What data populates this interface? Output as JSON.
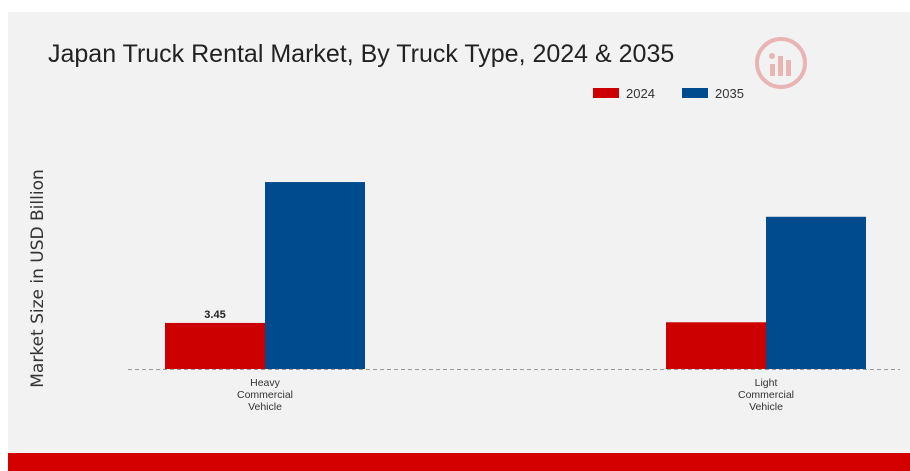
{
  "colors": {
    "series_2024": "#cc0000",
    "series_2035": "#004b8d",
    "baseline": "#999999",
    "footer": "#d40000"
  },
  "logo": {
    "icon": "market-research-logo-icon"
  },
  "chart_data": {
    "type": "bar",
    "title": "Japan Truck Rental Market, By Truck Type, 2024 & 2035",
    "xlabel": "",
    "ylabel": "Market Size in USD Billion",
    "categories": [
      "Heavy Commercial Vehicle",
      "Light Commercial Vehicle"
    ],
    "category_lines": [
      [
        "Heavy",
        "Commercial",
        "Vehicle"
      ],
      [
        "Light",
        "Commercial",
        "Vehicle"
      ]
    ],
    "series": [
      {
        "name": "2024",
        "values": [
          3.45,
          3.5
        ]
      },
      {
        "name": "2035",
        "values": [
          14.0,
          11.4
        ]
      }
    ],
    "data_labels": [
      {
        "series": 0,
        "index": 0,
        "text": "3.45"
      }
    ],
    "ylim": [
      0,
      17
    ],
    "grid": false,
    "legend_position": "top-right"
  }
}
